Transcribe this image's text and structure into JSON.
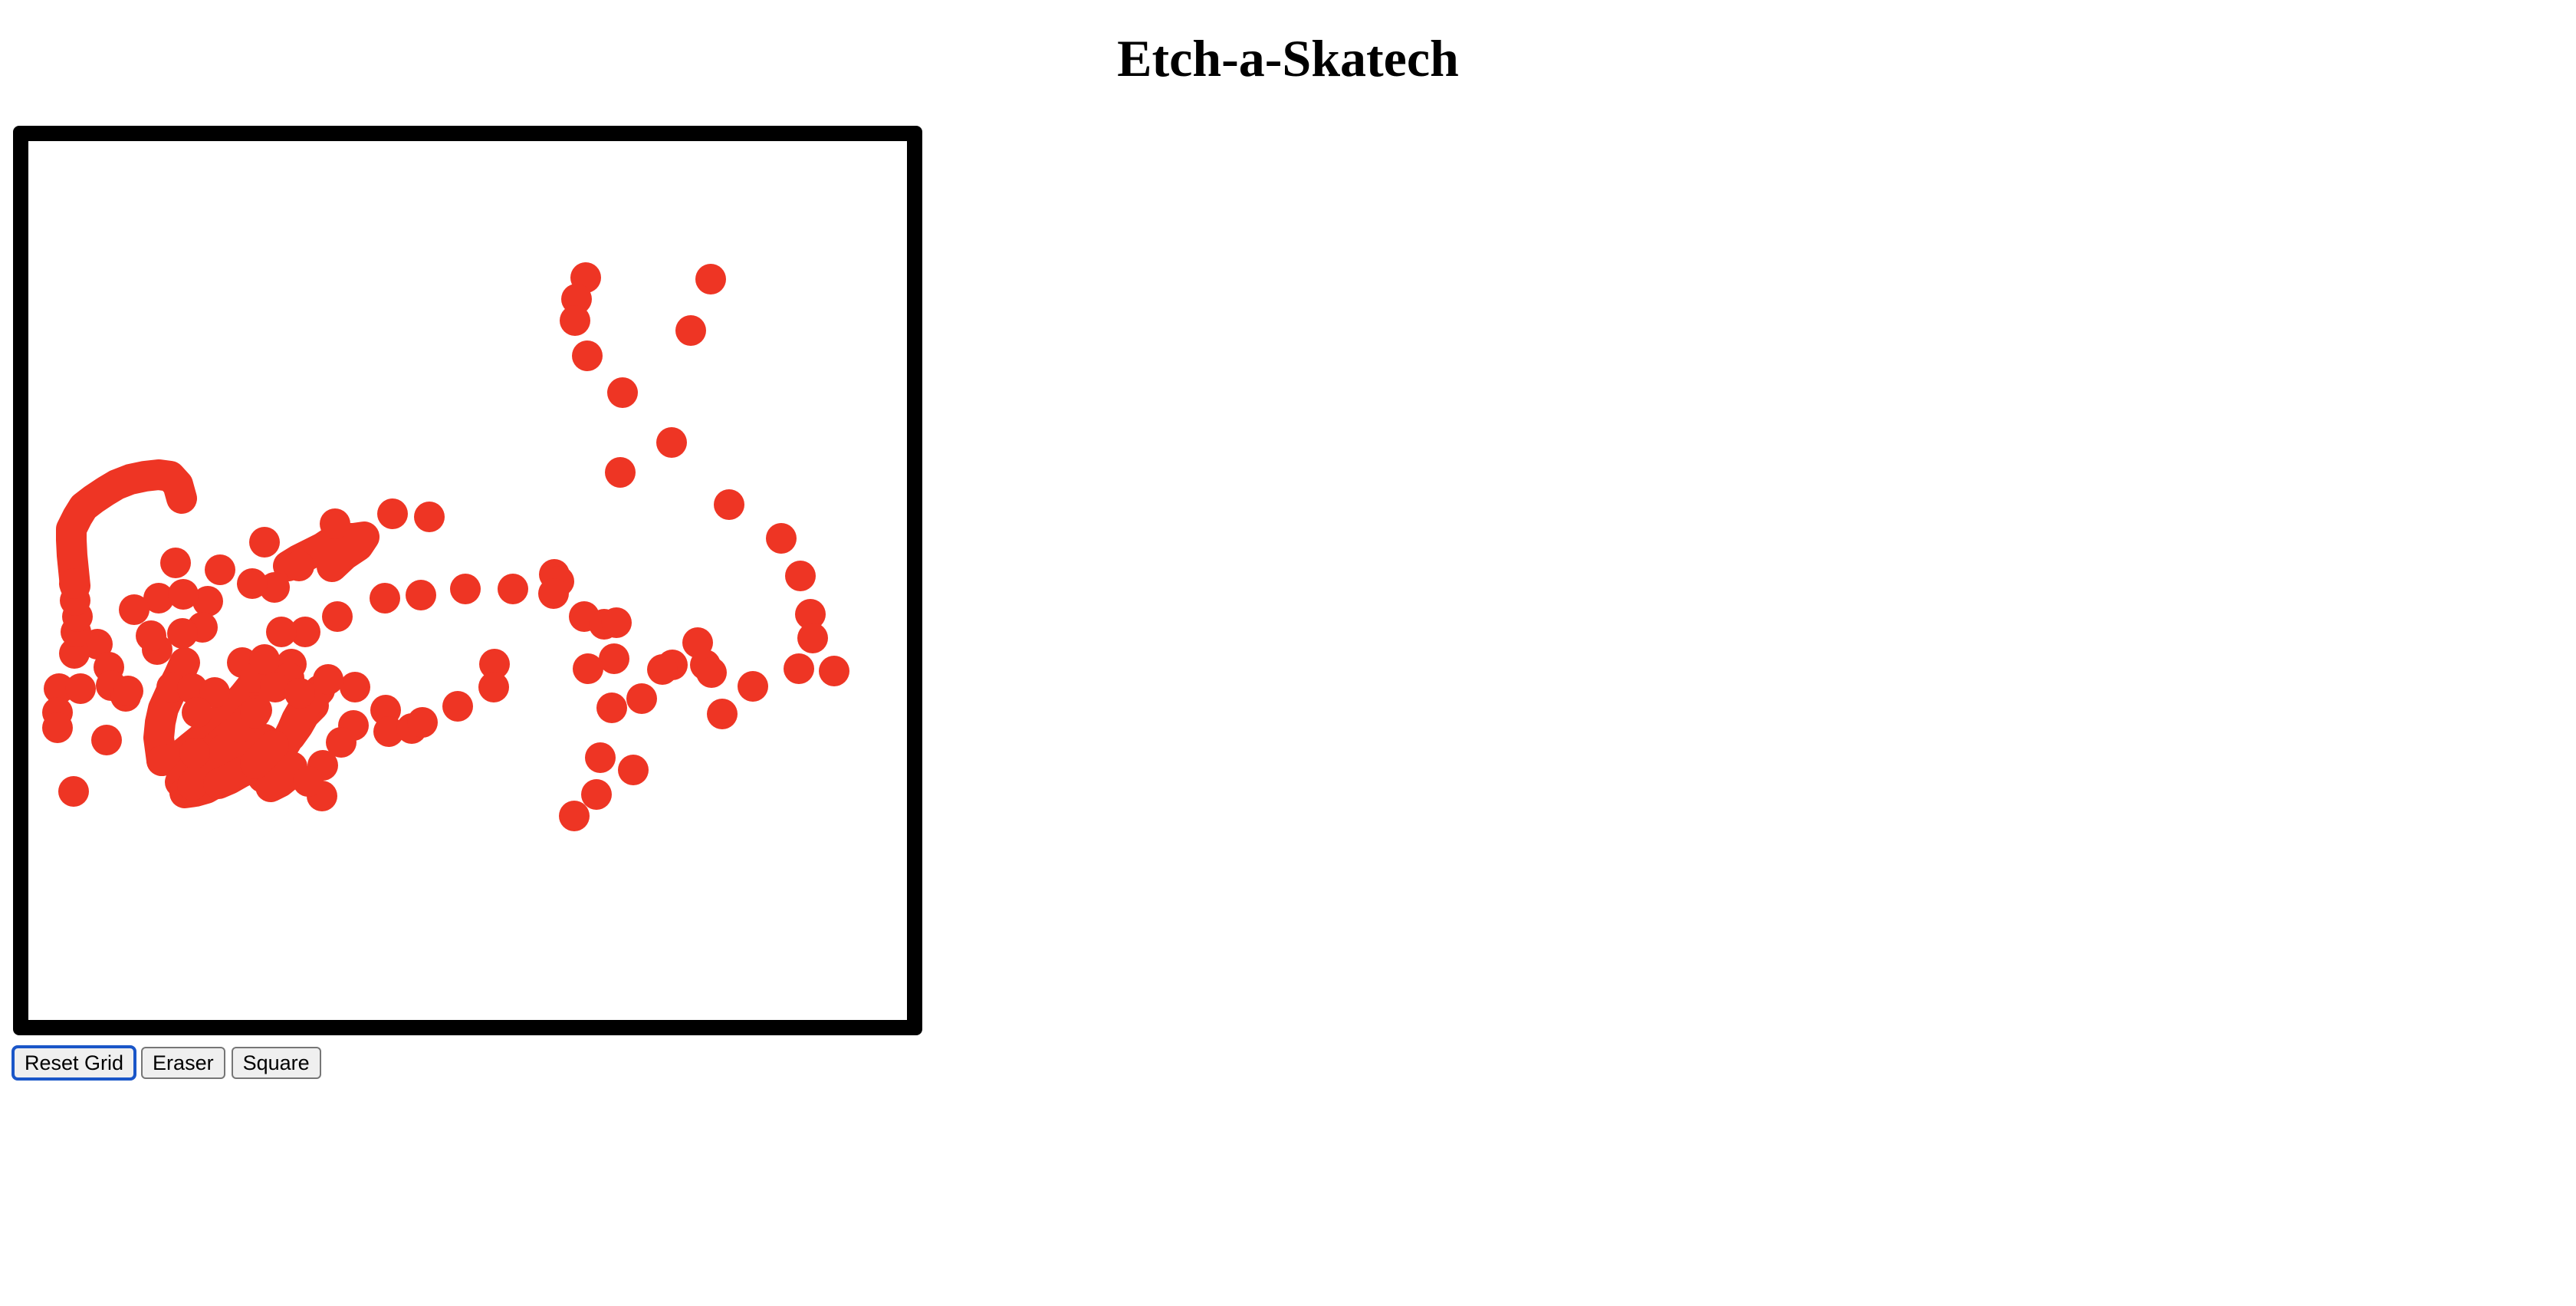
{
  "page": {
    "title": "Etch-a-Skatech"
  },
  "board": {
    "border_color": "#000000",
    "background_color": "#ffffff",
    "ink_color": "#ee3524"
  },
  "controls": {
    "reset_label": "Reset Grid",
    "eraser_label": "Eraser",
    "square_label": "Square"
  }
}
